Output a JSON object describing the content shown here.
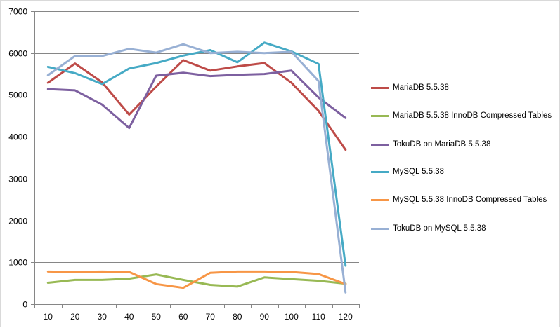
{
  "chart_data": {
    "type": "line",
    "title": "",
    "xlabel": "",
    "ylabel": "",
    "categories": [
      "10",
      "20",
      "30",
      "40",
      "50",
      "60",
      "70",
      "80",
      "90",
      "100",
      "110",
      "120"
    ],
    "ylim": [
      0,
      7000
    ],
    "yticks": [
      "0",
      "1000",
      "2000",
      "3000",
      "4000",
      "5000",
      "6000",
      "7000"
    ],
    "grid": "horizontal",
    "legend_position": "right",
    "series": [
      {
        "name": "MariaDB 5.5.38",
        "color": "#be4b48",
        "values": [
          5290,
          5750,
          5300,
          4530,
          5200,
          5830,
          5580,
          5680,
          5760,
          5290,
          4620,
          3690
        ]
      },
      {
        "name": "MariaDB 5.5.38 InnoDB Compressed Tables",
        "color": "#98b954",
        "values": [
          510,
          580,
          580,
          610,
          710,
          580,
          460,
          420,
          640,
          600,
          560,
          490
        ]
      },
      {
        "name": "TokuDB on MariaDB 5.5.38",
        "color": "#7d60a0",
        "values": [
          5140,
          5110,
          4770,
          4210,
          5460,
          5530,
          5450,
          5480,
          5500,
          5580,
          4940,
          4450
        ]
      },
      {
        "name": "MySQL 5.5.38",
        "color": "#46aac5",
        "values": [
          5670,
          5520,
          5260,
          5630,
          5760,
          5940,
          6070,
          5780,
          6250,
          6040,
          5740,
          920
        ]
      },
      {
        "name": "MySQL 5.5.38 InnoDB Compressed Tables",
        "color": "#f79646",
        "values": [
          780,
          770,
          780,
          770,
          480,
          390,
          750,
          780,
          780,
          770,
          720,
          480
        ]
      },
      {
        "name": "TokuDB on MySQL 5.5.38",
        "color": "#98b0d4",
        "values": [
          5470,
          5930,
          5930,
          6100,
          6010,
          6210,
          6000,
          6030,
          6000,
          6030,
          5330,
          280
        ]
      }
    ]
  }
}
